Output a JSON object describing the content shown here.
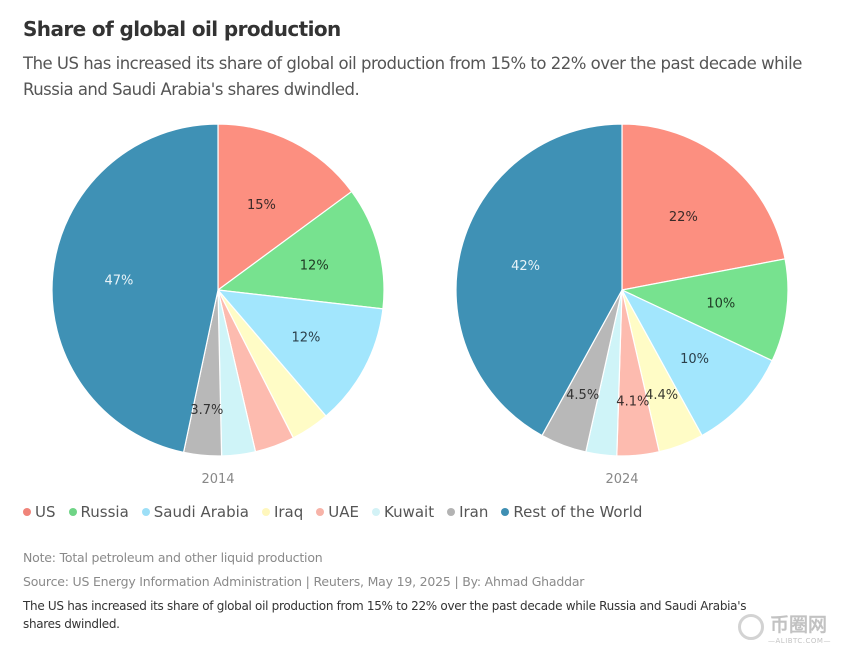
{
  "header": {
    "title": "Share of global oil production",
    "subtitle": "The US has increased its share of global oil production from 15% to 22% over the past decade while Russia and Saudi Arabia's shares dwindled."
  },
  "chart_data": [
    {
      "type": "pie",
      "title": "2014",
      "categories": [
        "US",
        "Russia",
        "Saudi Arabia",
        "Iraq",
        "UAE",
        "Kuwait",
        "Iran",
        "Rest of the World"
      ],
      "values": [
        15,
        12,
        12,
        3.8,
        3.9,
        3.3,
        3.7,
        47
      ],
      "labels": [
        "15%",
        "12%",
        "12%",
        "",
        "",
        "",
        "3.7%",
        "47%"
      ],
      "colors": [
        "#fc8f80",
        "#77e28f",
        "#a2e6fd",
        "#fffcc6",
        "#fdbbaf",
        "#cff4f8",
        "#b8b8b8",
        "#3f91b5"
      ],
      "start": "12 o'clock, clockwise"
    },
    {
      "type": "pie",
      "title": "2024",
      "categories": [
        "US",
        "Russia",
        "Saudi Arabia",
        "Iraq",
        "UAE",
        "Kuwait",
        "Iran",
        "Rest of the World"
      ],
      "values": [
        22,
        10,
        10,
        4.4,
        4.1,
        3.0,
        4.5,
        42
      ],
      "labels": [
        "22%",
        "10%",
        "10%",
        "4.4%",
        "4.1%",
        "",
        "4.5%",
        "42%"
      ],
      "colors": [
        "#fc8f80",
        "#77e28f",
        "#a2e6fd",
        "#fffcc6",
        "#fdbbaf",
        "#cff4f8",
        "#b8b8b8",
        "#3f91b5"
      ],
      "start": "12 o'clock, clockwise"
    }
  ],
  "legend": [
    {
      "label": "US",
      "color": "#f0847a"
    },
    {
      "label": "Russia",
      "color": "#6fd486"
    },
    {
      "label": "Saudi Arabia",
      "color": "#9ddff7"
    },
    {
      "label": "Iraq",
      "color": "#fff7bd"
    },
    {
      "label": "UAE",
      "color": "#f7b3a8"
    },
    {
      "label": "Kuwait",
      "color": "#d3f2f6"
    },
    {
      "label": "Iran",
      "color": "#b3b3b3"
    },
    {
      "label": "Rest of the World",
      "color": "#3f8fb3"
    }
  ],
  "footer": {
    "note": "Note: Total petroleum and other liquid production",
    "source": "Source: US Energy Information Administration | Reuters, May 19, 2025 | By: Ahmad Ghaddar",
    "caption": "The US has increased its share of global oil production from 15% to 22% over the past decade while Russia and Saudi Arabia's shares dwindled."
  },
  "watermark": {
    "text": "币圈网",
    "subtext": "—ALIBTC.COM—"
  }
}
